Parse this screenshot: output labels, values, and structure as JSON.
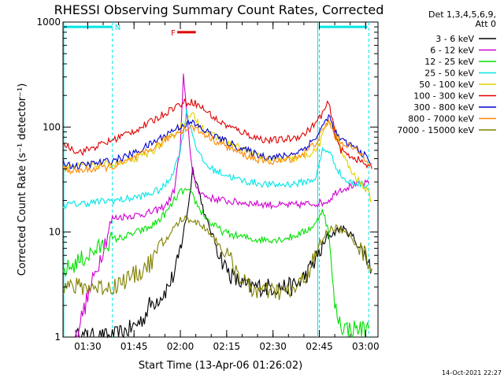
{
  "chart_data": {
    "type": "line",
    "title": "RHESSI Observing Summary Count Rates, Corrected",
    "xlabel": "Start Time (13-Apr-06 01:26:02)",
    "ylabel": "Corrected Count Rate (s⁻¹ detector⁻¹)",
    "x_unit": "minutes after 01:26:02",
    "xlim": [
      -4,
      98
    ],
    "ylim": [
      1,
      1000
    ],
    "yscale": "log",
    "x_ticks": [
      "01:30",
      "01:45",
      "02:00",
      "02:15",
      "02:30",
      "02:45",
      "03:00"
    ],
    "x_tick_minutes": [
      4,
      19,
      34,
      49,
      64,
      79,
      94
    ],
    "y_ticks": [
      "1",
      "10",
      "100",
      "1000"
    ],
    "y_tick_values": [
      1,
      10,
      100,
      1000
    ],
    "legend_header": [
      "Det 1,3,4,5,6,9,",
      "Att 0"
    ],
    "legend_placement": "right",
    "annotations": [
      {
        "text": "N",
        "x_start": -4,
        "x_end": 12,
        "y": 900,
        "color": "#00e5e5"
      },
      {
        "text": "F",
        "x_start": 33,
        "x_end": 39,
        "y": 800,
        "color": "#e00000"
      }
    ],
    "night_markers": [
      12,
      79,
      95
    ],
    "timestamp": "14-Oct-2021 22:27",
    "series": [
      {
        "name": "3 - 6 keV",
        "color": "#000000",
        "x": [
          0,
          12,
          18,
          22,
          24,
          28,
          30,
          32,
          33,
          34,
          35,
          36,
          37,
          38,
          40,
          42,
          44,
          46,
          48,
          50,
          52,
          54,
          56,
          58,
          60,
          62,
          64,
          66,
          70,
          72,
          75,
          80,
          82,
          84,
          86,
          88,
          90,
          92,
          94,
          96
        ],
        "y": [
          1.0,
          1.0,
          1.2,
          1.5,
          2.0,
          2.5,
          3.0,
          4.0,
          5.0,
          7,
          10,
          14,
          22,
          40,
          25,
          14,
          10,
          7,
          5,
          4,
          3.5,
          3.2,
          3.0,
          3.0,
          3.0,
          3.0,
          3.0,
          3.0,
          3.0,
          3.2,
          4,
          7,
          9,
          10,
          11,
          10,
          9,
          7,
          6,
          4.5
        ]
      },
      {
        "name": "6 - 12 keV",
        "color": "#d000d0",
        "x": [
          0,
          12,
          15,
          20,
          25,
          28,
          30,
          32,
          34,
          35,
          36,
          37,
          38,
          39,
          40,
          42,
          44,
          48,
          50,
          55,
          60,
          65,
          70,
          75,
          80,
          82,
          85,
          90,
          95
        ],
        "y": [
          1,
          13.5,
          14,
          14.5,
          15.5,
          17,
          19,
          25,
          65,
          300,
          140,
          70,
          35,
          28,
          25,
          22,
          21,
          20,
          19.5,
          19,
          18.5,
          18,
          18,
          18.5,
          19,
          20,
          25,
          28,
          29
        ]
      },
      {
        "name": "12 - 25 keV",
        "color": "#00e000",
        "x": [
          -4,
          12,
          16,
          20,
          24,
          27,
          30,
          32,
          34,
          36,
          38,
          40,
          42,
          44,
          46,
          48,
          50,
          54,
          58,
          62,
          66,
          70,
          74,
          78,
          80,
          82,
          84,
          86,
          88,
          95
        ],
        "y": [
          4.2,
          8.5,
          9,
          10,
          11,
          13,
          16,
          20,
          24,
          25,
          22,
          17,
          14,
          12,
          11,
          10,
          9.5,
          9,
          8.5,
          8.5,
          8.5,
          9,
          10,
          12,
          17,
          10,
          2,
          1.3,
          1.2,
          1.2
        ]
      },
      {
        "name": "25 - 50 keV",
        "color": "#00e5e5",
        "x": [
          -4,
          12,
          16,
          20,
          24,
          28,
          30,
          32,
          34,
          36,
          38,
          40,
          42,
          44,
          48,
          52,
          56,
          60,
          64,
          68,
          72,
          76,
          78,
          80,
          82,
          84,
          86,
          88,
          95
        ],
        "y": [
          18,
          20,
          20.5,
          21.5,
          23,
          26,
          30,
          40,
          60,
          140,
          85,
          55,
          45,
          40,
          36,
          32,
          30,
          29,
          28,
          28.5,
          29,
          31,
          33,
          60,
          60,
          45,
          35,
          30,
          28
        ]
      },
      {
        "name": "50 - 100 keV",
        "color": "#e0d000",
        "x": [
          -4,
          12,
          16,
          20,
          24,
          28,
          32,
          35,
          38,
          40,
          42,
          44,
          46,
          50,
          54,
          58,
          62,
          66,
          70,
          74,
          78,
          80,
          82,
          84,
          86,
          88,
          90,
          92,
          94,
          96
        ],
        "y": [
          42,
          44,
          45,
          50,
          57,
          68,
          85,
          110,
          130,
          110,
          95,
          85,
          78,
          70,
          62,
          55,
          50,
          48,
          49,
          52,
          60,
          80,
          120,
          95,
          60,
          45,
          35,
          30,
          26,
          20
        ]
      },
      {
        "name": "100 - 300 keV",
        "color": "#e00000",
        "x": [
          -4,
          0,
          2,
          12,
          16,
          20,
          24,
          28,
          32,
          35,
          38,
          40,
          42,
          44,
          46,
          50,
          54,
          58,
          62,
          66,
          70,
          74,
          78,
          80,
          82,
          84,
          86,
          88,
          90,
          92,
          94,
          96
        ],
        "y": [
          70,
          60,
          58,
          75,
          85,
          95,
          110,
          130,
          155,
          170,
          175,
          160,
          145,
          130,
          115,
          100,
          90,
          80,
          75,
          75,
          78,
          85,
          110,
          135,
          170,
          90,
          60,
          55,
          52,
          48,
          44,
          40
        ]
      },
      {
        "name": "300 - 800 keV",
        "color": "#0000d0",
        "x": [
          -4,
          0,
          12,
          16,
          20,
          24,
          28,
          32,
          35,
          38,
          40,
          42,
          46,
          50,
          54,
          58,
          62,
          66,
          70,
          74,
          78,
          80,
          82,
          84,
          86,
          88,
          90,
          92,
          94,
          96
        ],
        "y": [
          46,
          42,
          48,
          52,
          58,
          68,
          80,
          95,
          105,
          110,
          100,
          92,
          80,
          70,
          62,
          56,
          52,
          52,
          55,
          62,
          80,
          100,
          130,
          90,
          75,
          70,
          65,
          60,
          52,
          45
        ]
      },
      {
        "name": "800 - 7000 keV",
        "color": "#ff8800",
        "x": [
          -4,
          0,
          12,
          16,
          20,
          24,
          28,
          32,
          35,
          38,
          40,
          42,
          46,
          50,
          54,
          58,
          62,
          66,
          70,
          74,
          78,
          80,
          82,
          84,
          86,
          88,
          90,
          92,
          94,
          96
        ],
        "y": [
          40,
          38,
          42,
          46,
          52,
          60,
          72,
          85,
          95,
          100,
          92,
          85,
          72,
          63,
          55,
          50,
          47,
          47,
          50,
          56,
          72,
          90,
          115,
          82,
          72,
          68,
          62,
          57,
          50,
          45
        ]
      },
      {
        "name": "7000 - 15000 keV",
        "color": "#808000",
        "x": [
          -4,
          12,
          16,
          20,
          24,
          26,
          28,
          30,
          32,
          34,
          36,
          38,
          40,
          42,
          44,
          46,
          48,
          50,
          52,
          54,
          56,
          60,
          64,
          70,
          72,
          75,
          78,
          80,
          82,
          84,
          86,
          88,
          90,
          92,
          94,
          96
        ],
        "y": [
          3.0,
          3.0,
          3.5,
          4.0,
          5.0,
          6.0,
          7.5,
          9,
          11,
          13,
          13.5,
          13,
          12,
          11,
          9.5,
          8,
          6.5,
          5.5,
          4.5,
          3.5,
          3.0,
          2.7,
          2.7,
          2.7,
          3.0,
          4.0,
          6,
          8.5,
          10.5,
          11,
          10.5,
          9.5,
          8.5,
          7,
          6,
          4.5
        ]
      }
    ]
  }
}
